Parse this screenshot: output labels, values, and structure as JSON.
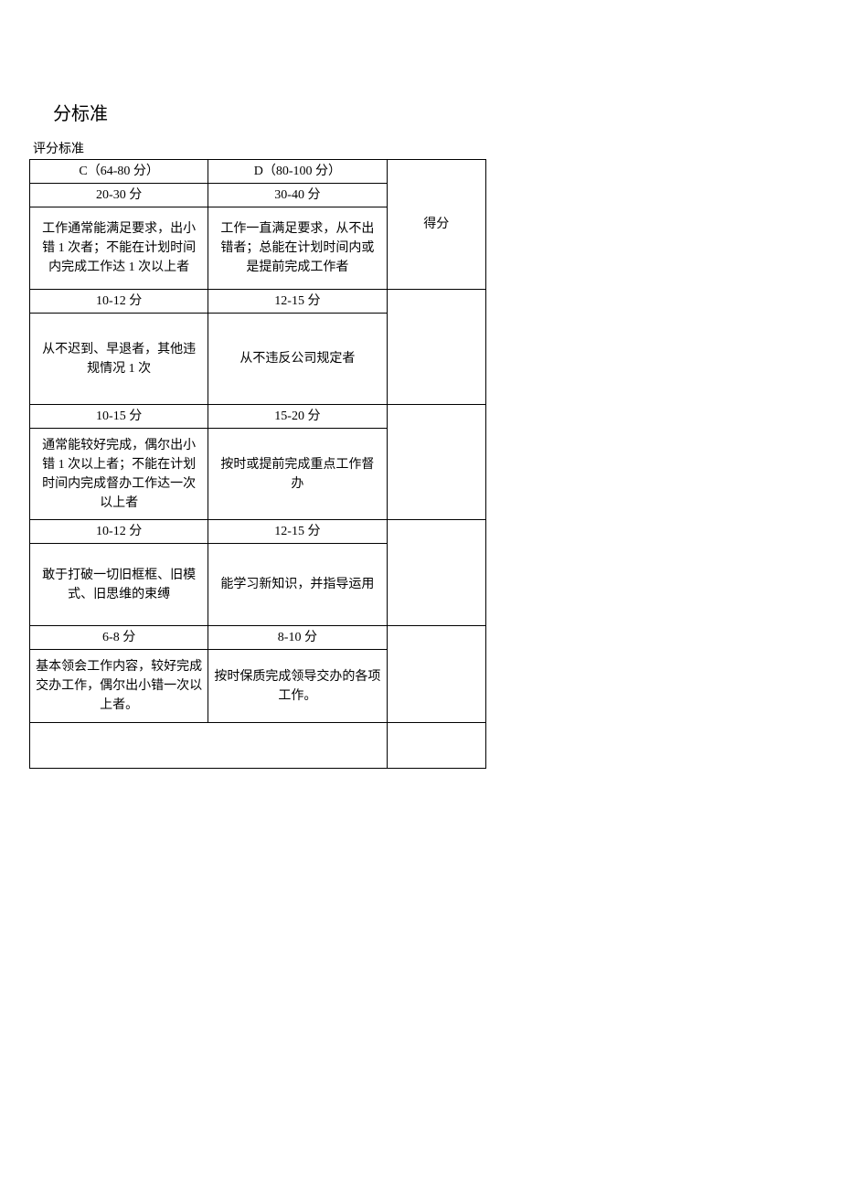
{
  "page_title": "分标准",
  "header_label": "评分标准",
  "columns": {
    "c_header": "C（64-80 分）",
    "d_header": "D（80-100 分）",
    "score_header": "得分"
  },
  "sections": [
    {
      "c_range": "20-30 分",
      "d_range": "30-40 分",
      "c_desc": "工作通常能满足要求，出小错 1 次者；不能在计划时间内完成工作达 1 次以上者",
      "d_desc": "工作一直满足要求，从不出错者；总能在计划时间内或是提前完成工作者"
    },
    {
      "c_range": "10-12 分",
      "d_range": "12-15 分",
      "c_desc": "从不迟到、早退者，其他违规情况 1 次",
      "d_desc": "从不违反公司规定者"
    },
    {
      "c_range": "10-15 分",
      "d_range": "15-20 分",
      "c_desc": "通常能较好完成，偶尔出小错 1 次以上者；不能在计划时间内完成督办工作达一次以上者",
      "d_desc": "按时或提前完成重点工作督办"
    },
    {
      "c_range": "10-12 分",
      "d_range": "12-15 分",
      "c_desc": "敢于打破一切旧框框、旧模式、旧思维的束缚",
      "d_desc": "能学习新知识，并指导运用"
    },
    {
      "c_range": "6-8 分",
      "d_range": "8-10 分",
      "c_desc": "基本领会工作内容，较好完成交办工作，偶尔出小错一次以上者。",
      "d_desc": "按时保质完成领导交办的各项工作。"
    }
  ]
}
